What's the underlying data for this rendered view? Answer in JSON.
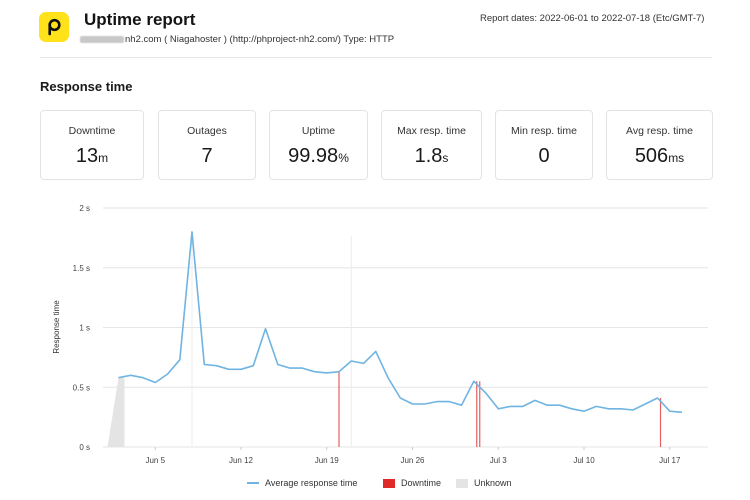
{
  "header": {
    "title": "Uptime report",
    "monitor_redacted": "",
    "monitor_suffix": "nh2.com ( Niagahoster ) (http://phproject-nh2.com/) Type: HTTP",
    "report_dates": "Report dates: 2022-06-01 to 2022-07-18 (Etc/GMT-7)",
    "logo_icon": "p-logo-icon",
    "logo_letter": "p",
    "logo_color": "#ffe21a"
  },
  "section": {
    "title": "Response time"
  },
  "cards": [
    {
      "label": "Downtime",
      "value": "13",
      "unit": "m"
    },
    {
      "label": "Outages",
      "value": "7",
      "unit": ""
    },
    {
      "label": "Uptime",
      "value": "99.98",
      "unit": "%"
    },
    {
      "label": "Max resp. time",
      "value": "1.8",
      "unit": "s"
    },
    {
      "label": "Min resp. time",
      "value": "0",
      "unit": ""
    },
    {
      "label": "Avg resp. time",
      "value": "506",
      "unit": "ms"
    }
  ],
  "legend": {
    "avg": "Average response time",
    "downtime": "Downtime",
    "unknown": "Unknown"
  },
  "colors": {
    "line": "#6fb4e2",
    "downtime": "#e02a2a",
    "unknown": "#e4e4e4",
    "grid": "#e6e6e6"
  },
  "chart_data": {
    "type": "line",
    "title": "",
    "xlabel": "",
    "ylabel": "Response time",
    "ylim": [
      0,
      2
    ],
    "yticks": [
      "0 s",
      "0.5 s",
      "1 s",
      "1.5 s",
      "2 s"
    ],
    "xticks": [
      "Jun 5",
      "Jun 12",
      "Jun 19",
      "Jun 26",
      "Jul 3",
      "Jul 10",
      "Jul 17"
    ],
    "grid": true,
    "legend_position": "bottom",
    "x": [
      "Jun 2",
      "Jun 3",
      "Jun 4",
      "Jun 5",
      "Jun 6",
      "Jun 7",
      "Jun 8",
      "Jun 9",
      "Jun 10",
      "Jun 11",
      "Jun 12",
      "Jun 13",
      "Jun 14",
      "Jun 15",
      "Jun 16",
      "Jun 17",
      "Jun 18",
      "Jun 19",
      "Jun 20",
      "Jun 21",
      "Jun 22",
      "Jun 23",
      "Jun 24",
      "Jun 25",
      "Jun 26",
      "Jun 27",
      "Jun 28",
      "Jun 29",
      "Jun 30",
      "Jul 1",
      "Jul 2",
      "Jul 3",
      "Jul 4",
      "Jul 5",
      "Jul 6",
      "Jul 7",
      "Jul 8",
      "Jul 9",
      "Jul 10",
      "Jul 11",
      "Jul 12",
      "Jul 13",
      "Jul 14",
      "Jul 15",
      "Jul 16",
      "Jul 17",
      "Jul 18"
    ],
    "series": [
      {
        "name": "Average response time",
        "unit": "s",
        "values": [
          0.58,
          0.6,
          0.58,
          0.54,
          0.61,
          0.73,
          1.8,
          0.69,
          0.68,
          0.65,
          0.65,
          0.68,
          0.99,
          0.69,
          0.66,
          0.66,
          0.63,
          0.62,
          0.63,
          0.72,
          0.7,
          0.8,
          0.58,
          0.41,
          0.36,
          0.36,
          0.38,
          0.38,
          0.35,
          0.55,
          0.45,
          0.32,
          0.34,
          0.34,
          0.39,
          0.35,
          0.35,
          0.32,
          0.3,
          0.34,
          0.32,
          0.32,
          0.31,
          0.36,
          0.41,
          0.3,
          0.29
        ]
      }
    ],
    "downtime_markers": [
      "Jun 20",
      "Jul 1",
      "Jul 1",
      "Jul 16"
    ],
    "unknown_ranges": [
      [
        "Jun 1",
        "Jun 2"
      ]
    ],
    "reference_lines": [
      "Jun 8",
      "Jun 21"
    ]
  }
}
